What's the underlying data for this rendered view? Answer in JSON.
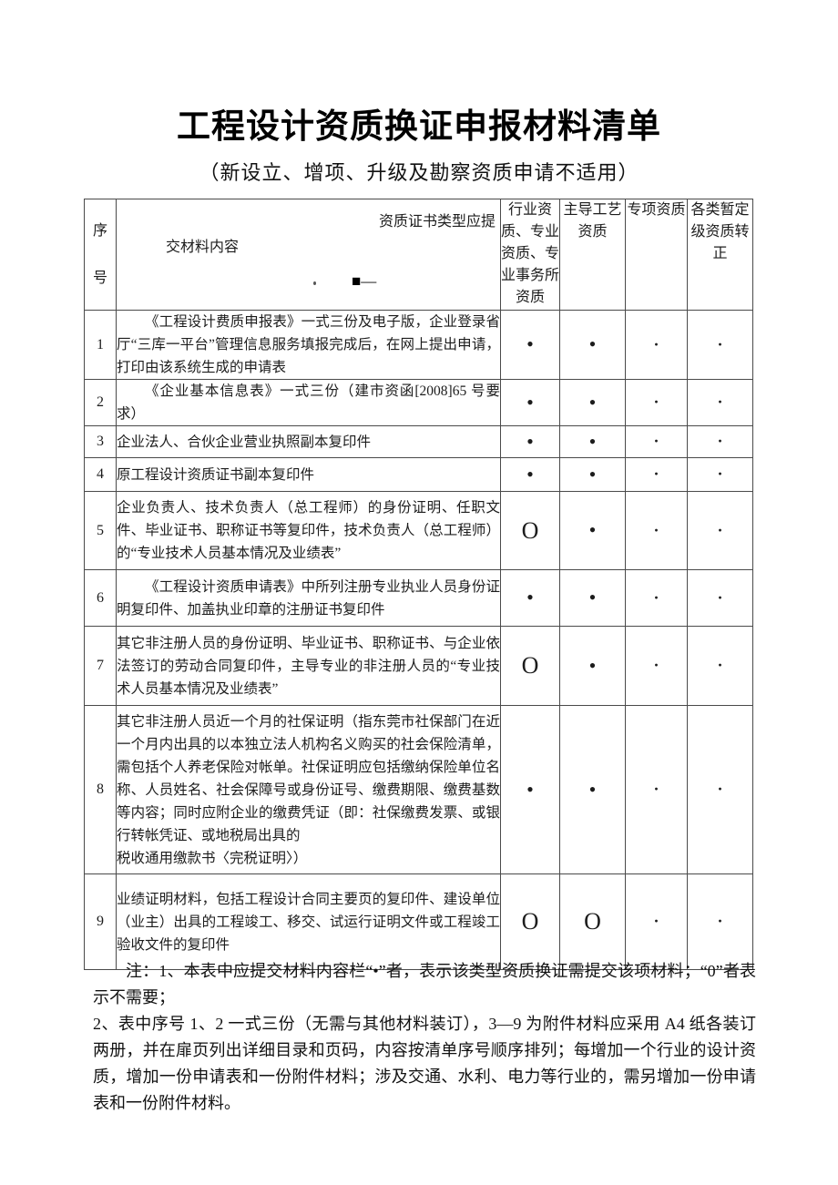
{
  "title": "工程设计资质换证申报材料清单",
  "subtitle": "（新设立、增项、升级及勘察资质申请不适用）",
  "table": {
    "header": {
      "no": "序\n号",
      "cert_type_label": "资质证书类型应提",
      "material_label": "交材料内容",
      "square_mark": "■—",
      "cols": [
        "行业资\n质、专业\n资质、专\n业事务所\n资质",
        "主导工艺\n资质",
        "专项资质",
        "各类暂定\n级资质转\n正"
      ]
    },
    "rows": [
      {
        "no": "1",
        "indent": true,
        "content": "《工程设计费质申报表》一式三份及电子版，企业登录省厅“三库一平台”管理信息服务填报完成后，在网上提出申请，打印由该系统生成的申请表",
        "marks": [
          "•",
          "•",
          "·",
          "·"
        ]
      },
      {
        "no": "2",
        "indent": true,
        "content": "《企业基本信息表》一式三份（建市资函[2008]65 号要求）",
        "marks": [
          "•",
          "•",
          "·",
          "·"
        ]
      },
      {
        "no": "3",
        "indent": false,
        "content": "企业法人、合伙企业营业执照副本复印件",
        "marks": [
          "•",
          "•",
          "·",
          "·"
        ]
      },
      {
        "no": "4",
        "indent": false,
        "content": "原工程设计资质证书副本复印件",
        "marks": [
          "•",
          "•",
          "·",
          "·"
        ]
      },
      {
        "no": "5",
        "indent": false,
        "content": "企业负责人、技术负责人（总工程师）的身份证明、任职文件、毕业证书、职称证书等复印件，技术负责人（总工程师）的“专业技术人员基本情况及业绩表”",
        "marks": [
          "O",
          "•",
          "·",
          "·"
        ]
      },
      {
        "no": "6",
        "indent": true,
        "content": "《工程设计资质申请表》中所列注册专业执业人员身份证明复印件、加盖执业印章的注册证书复印件",
        "marks": [
          "•",
          "•",
          "·",
          "·"
        ]
      },
      {
        "no": "7",
        "indent": false,
        "content": "其它非注册人员的身份证明、毕业证书、职称证书、与企业依法签订的劳动合同复印件，主导专业的非注册人员的“专业技术人员基本情况及业绩表”",
        "marks": [
          "O",
          "•",
          "·",
          "·"
        ]
      },
      {
        "no": "8",
        "indent": false,
        "content": "其它非注册人员近一个月的社保证明（指东莞市社保部门在近一个月内出具的以本独立法人机构名义购买的社会保险清单，需包括个人养老保险对帐单。社保证明应包括缴纳保险单位名称、人员姓名、社会保障号或身份证号、缴费期限、缴费基数等内容；同时应附企业的缴费凭证（即：社保缴费发票、或银行转帐凭证、或地税局出具的\n税收通用缴款书〈完税证明〉）",
        "marks": [
          "•",
          "•",
          "·",
          "·"
        ]
      },
      {
        "no": "9",
        "indent": false,
        "content": "业绩证明材料，包括工程设计合同主要页的复印件、建设单位（业主）出具的工程竣工、移交、试运行证明文件或工程竣工验收文件的复印件",
        "marks": [
          "O",
          "O",
          "·",
          "·"
        ]
      }
    ]
  },
  "notes": [
    "注：1、本表中应提交材料内容栏“•”者，表示该类型资质换证需提交该项材料；“0”者表示不需要；",
    "2、表中序号 1、2 一式三份（无需与其他材料装订），3—9 为附件材料应采用 A4 纸各装订两册，并在扉页列出详细目录和页码，内容按清单序号顺序排列；每增加一个行业的设计资质，增加一份申请表和一份附件材料；涉及交通、水利、电力等行业的，需另增加一份申请表和一份附件材料。"
  ]
}
